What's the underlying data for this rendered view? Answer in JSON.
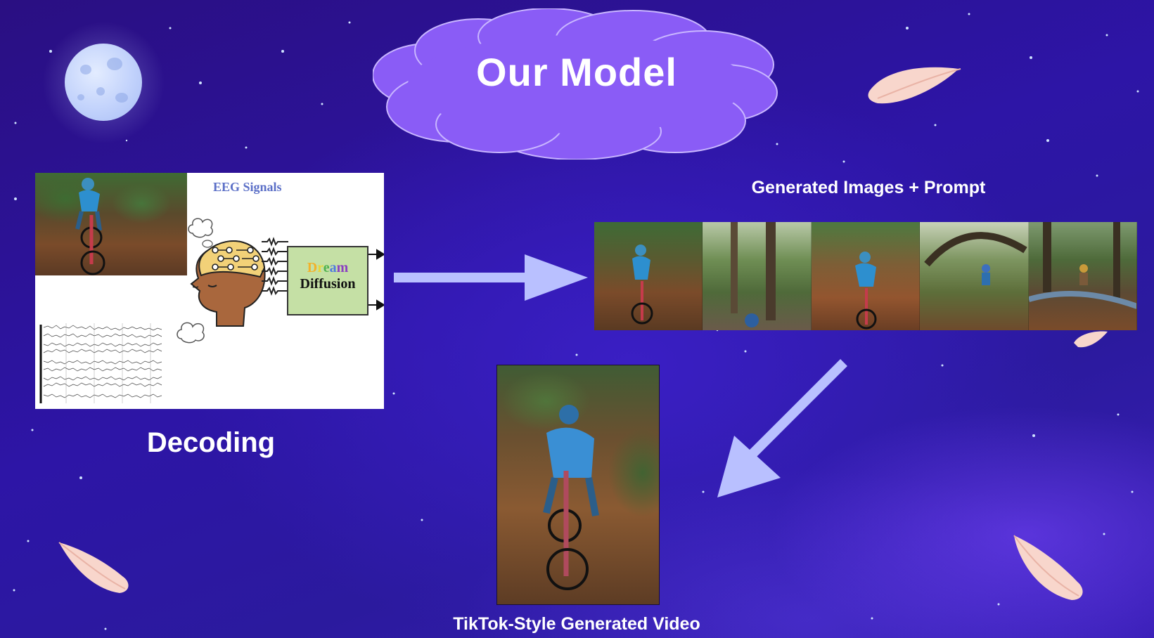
{
  "slide": {
    "title": "Our Model",
    "decoding_label": "Decoding",
    "generated_label": "Generated Images + Prompt",
    "video_label": "TikTok-Style Generated Video"
  },
  "diagram": {
    "eeg_title": "EEG Signals",
    "dream_letters": [
      "D",
      "r",
      "e",
      "a",
      "m"
    ],
    "diffusion_word": "Diffusion"
  },
  "colors": {
    "background": "#2d15a6",
    "cloud": "#8a5cf6",
    "arrow": "#b9c0ff",
    "feather": "#f8d6cc",
    "dream_letters": [
      "#f2b22b",
      "#f2df3c",
      "#4fb14f",
      "#4f7ae0",
      "#8b3fc1"
    ]
  },
  "icons": {
    "moon": "moon-icon",
    "feather": "feather-icon",
    "head": "brain-head-icon",
    "cloud": "thought-cloud-icon"
  }
}
